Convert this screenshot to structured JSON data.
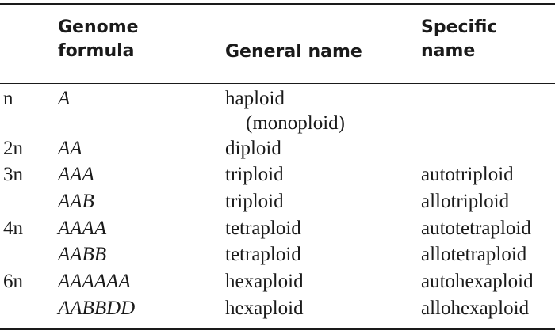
{
  "table": {
    "headers": {
      "formula_line1": "Genome",
      "formula_line2": "formula",
      "general": "General name",
      "specific_line1": "Specific",
      "specific_line2": "name"
    },
    "rows": [
      {
        "ploidy": "n",
        "formula": "A",
        "general": "haploid",
        "general_extra": "(monoploid)",
        "specific": ""
      },
      {
        "ploidy": "2n",
        "formula": "AA",
        "general": "diploid",
        "specific": ""
      },
      {
        "ploidy": "3n",
        "formula": "AAA",
        "general": "triploid",
        "specific": "autotriploid"
      },
      {
        "ploidy": "",
        "formula": "AAB",
        "general": "triploid",
        "specific": "allotriploid"
      },
      {
        "ploidy": "4n",
        "formula": "AAAA",
        "general": "tetraploid",
        "specific": "autotetraploid"
      },
      {
        "ploidy": "",
        "formula": "AABB",
        "general": "tetraploid",
        "specific": "allotetraploid"
      },
      {
        "ploidy": "6n",
        "formula": "AAAAAA",
        "general": "hexaploid",
        "specific": "autohexaploid"
      },
      {
        "ploidy": "",
        "formula": "AABBDD",
        "general": "hexaploid",
        "specific": "allohexaploid"
      }
    ]
  }
}
